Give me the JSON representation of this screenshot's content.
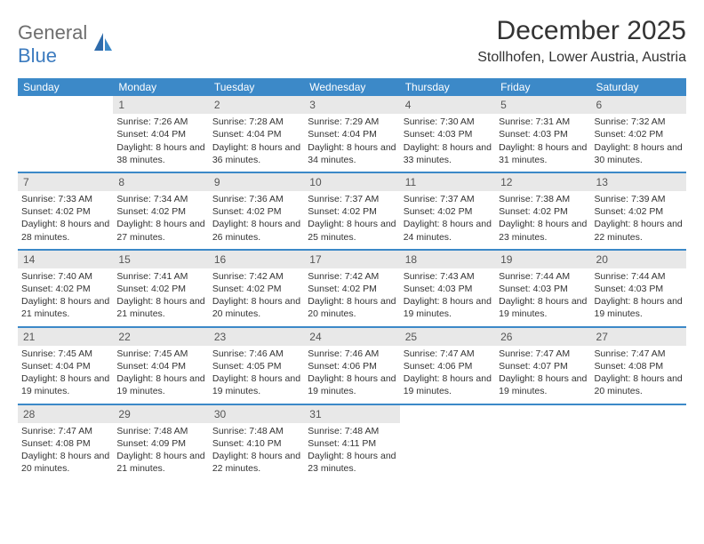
{
  "brand": {
    "part1": "General",
    "part2": "Blue"
  },
  "title": "December 2025",
  "location": "Stollhofen, Lower Austria, Austria",
  "colors": {
    "header_bg": "#3c89c8",
    "header_text": "#ffffff",
    "daynum_bg": "#e8e8e8",
    "rule": "#3c89c8",
    "brand_gray": "#6e6e6e",
    "brand_blue": "#3c7bbf"
  },
  "fonts": {
    "title_size": 30,
    "location_size": 16,
    "dow_size": 12,
    "body_size": 10.5
  },
  "dow": [
    "Sunday",
    "Monday",
    "Tuesday",
    "Wednesday",
    "Thursday",
    "Friday",
    "Saturday"
  ],
  "weeks": [
    [
      {
        "n": "",
        "sunrise": "",
        "sunset": "",
        "daylight": ""
      },
      {
        "n": "1",
        "sunrise": "Sunrise: 7:26 AM",
        "sunset": "Sunset: 4:04 PM",
        "daylight": "Daylight: 8 hours and 38 minutes."
      },
      {
        "n": "2",
        "sunrise": "Sunrise: 7:28 AM",
        "sunset": "Sunset: 4:04 PM",
        "daylight": "Daylight: 8 hours and 36 minutes."
      },
      {
        "n": "3",
        "sunrise": "Sunrise: 7:29 AM",
        "sunset": "Sunset: 4:04 PM",
        "daylight": "Daylight: 8 hours and 34 minutes."
      },
      {
        "n": "4",
        "sunrise": "Sunrise: 7:30 AM",
        "sunset": "Sunset: 4:03 PM",
        "daylight": "Daylight: 8 hours and 33 minutes."
      },
      {
        "n": "5",
        "sunrise": "Sunrise: 7:31 AM",
        "sunset": "Sunset: 4:03 PM",
        "daylight": "Daylight: 8 hours and 31 minutes."
      },
      {
        "n": "6",
        "sunrise": "Sunrise: 7:32 AM",
        "sunset": "Sunset: 4:02 PM",
        "daylight": "Daylight: 8 hours and 30 minutes."
      }
    ],
    [
      {
        "n": "7",
        "sunrise": "Sunrise: 7:33 AM",
        "sunset": "Sunset: 4:02 PM",
        "daylight": "Daylight: 8 hours and 28 minutes."
      },
      {
        "n": "8",
        "sunrise": "Sunrise: 7:34 AM",
        "sunset": "Sunset: 4:02 PM",
        "daylight": "Daylight: 8 hours and 27 minutes."
      },
      {
        "n": "9",
        "sunrise": "Sunrise: 7:36 AM",
        "sunset": "Sunset: 4:02 PM",
        "daylight": "Daylight: 8 hours and 26 minutes."
      },
      {
        "n": "10",
        "sunrise": "Sunrise: 7:37 AM",
        "sunset": "Sunset: 4:02 PM",
        "daylight": "Daylight: 8 hours and 25 minutes."
      },
      {
        "n": "11",
        "sunrise": "Sunrise: 7:37 AM",
        "sunset": "Sunset: 4:02 PM",
        "daylight": "Daylight: 8 hours and 24 minutes."
      },
      {
        "n": "12",
        "sunrise": "Sunrise: 7:38 AM",
        "sunset": "Sunset: 4:02 PM",
        "daylight": "Daylight: 8 hours and 23 minutes."
      },
      {
        "n": "13",
        "sunrise": "Sunrise: 7:39 AM",
        "sunset": "Sunset: 4:02 PM",
        "daylight": "Daylight: 8 hours and 22 minutes."
      }
    ],
    [
      {
        "n": "14",
        "sunrise": "Sunrise: 7:40 AM",
        "sunset": "Sunset: 4:02 PM",
        "daylight": "Daylight: 8 hours and 21 minutes."
      },
      {
        "n": "15",
        "sunrise": "Sunrise: 7:41 AM",
        "sunset": "Sunset: 4:02 PM",
        "daylight": "Daylight: 8 hours and 21 minutes."
      },
      {
        "n": "16",
        "sunrise": "Sunrise: 7:42 AM",
        "sunset": "Sunset: 4:02 PM",
        "daylight": "Daylight: 8 hours and 20 minutes."
      },
      {
        "n": "17",
        "sunrise": "Sunrise: 7:42 AM",
        "sunset": "Sunset: 4:02 PM",
        "daylight": "Daylight: 8 hours and 20 minutes."
      },
      {
        "n": "18",
        "sunrise": "Sunrise: 7:43 AM",
        "sunset": "Sunset: 4:03 PM",
        "daylight": "Daylight: 8 hours and 19 minutes."
      },
      {
        "n": "19",
        "sunrise": "Sunrise: 7:44 AM",
        "sunset": "Sunset: 4:03 PM",
        "daylight": "Daylight: 8 hours and 19 minutes."
      },
      {
        "n": "20",
        "sunrise": "Sunrise: 7:44 AM",
        "sunset": "Sunset: 4:03 PM",
        "daylight": "Daylight: 8 hours and 19 minutes."
      }
    ],
    [
      {
        "n": "21",
        "sunrise": "Sunrise: 7:45 AM",
        "sunset": "Sunset: 4:04 PM",
        "daylight": "Daylight: 8 hours and 19 minutes."
      },
      {
        "n": "22",
        "sunrise": "Sunrise: 7:45 AM",
        "sunset": "Sunset: 4:04 PM",
        "daylight": "Daylight: 8 hours and 19 minutes."
      },
      {
        "n": "23",
        "sunrise": "Sunrise: 7:46 AM",
        "sunset": "Sunset: 4:05 PM",
        "daylight": "Daylight: 8 hours and 19 minutes."
      },
      {
        "n": "24",
        "sunrise": "Sunrise: 7:46 AM",
        "sunset": "Sunset: 4:06 PM",
        "daylight": "Daylight: 8 hours and 19 minutes."
      },
      {
        "n": "25",
        "sunrise": "Sunrise: 7:47 AM",
        "sunset": "Sunset: 4:06 PM",
        "daylight": "Daylight: 8 hours and 19 minutes."
      },
      {
        "n": "26",
        "sunrise": "Sunrise: 7:47 AM",
        "sunset": "Sunset: 4:07 PM",
        "daylight": "Daylight: 8 hours and 19 minutes."
      },
      {
        "n": "27",
        "sunrise": "Sunrise: 7:47 AM",
        "sunset": "Sunset: 4:08 PM",
        "daylight": "Daylight: 8 hours and 20 minutes."
      }
    ],
    [
      {
        "n": "28",
        "sunrise": "Sunrise: 7:47 AM",
        "sunset": "Sunset: 4:08 PM",
        "daylight": "Daylight: 8 hours and 20 minutes."
      },
      {
        "n": "29",
        "sunrise": "Sunrise: 7:48 AM",
        "sunset": "Sunset: 4:09 PM",
        "daylight": "Daylight: 8 hours and 21 minutes."
      },
      {
        "n": "30",
        "sunrise": "Sunrise: 7:48 AM",
        "sunset": "Sunset: 4:10 PM",
        "daylight": "Daylight: 8 hours and 22 minutes."
      },
      {
        "n": "31",
        "sunrise": "Sunrise: 7:48 AM",
        "sunset": "Sunset: 4:11 PM",
        "daylight": "Daylight: 8 hours and 23 minutes."
      },
      {
        "n": "",
        "sunrise": "",
        "sunset": "",
        "daylight": ""
      },
      {
        "n": "",
        "sunrise": "",
        "sunset": "",
        "daylight": ""
      },
      {
        "n": "",
        "sunrise": "",
        "sunset": "",
        "daylight": ""
      }
    ]
  ]
}
